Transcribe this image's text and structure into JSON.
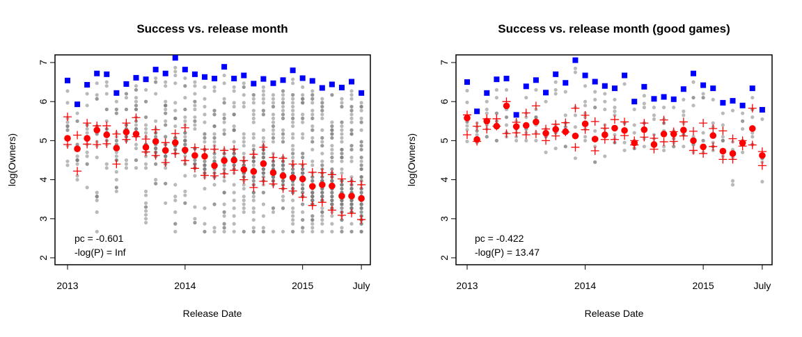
{
  "chart_data": [
    {
      "type": "scatter",
      "title": "Success vs. release month",
      "xlabel": "Release Date",
      "ylabel": "log(Owners)",
      "ylim": [
        2,
        7
      ],
      "yticks": [
        "2",
        "3",
        "4",
        "5",
        "6",
        "7"
      ],
      "xticks": [
        {
          "month_index": 0,
          "label": "2013"
        },
        {
          "month_index": 12,
          "label": "2014"
        },
        {
          "month_index": 24,
          "label": "2015"
        },
        {
          "month_index": 30,
          "label": "July"
        }
      ],
      "x_start": "2013-01",
      "annotation": [
        "pc = -0.601",
        "-log(P) = Inf"
      ],
      "max": [
        6.54,
        5.93,
        6.43,
        6.72,
        6.7,
        6.22,
        6.45,
        6.61,
        6.57,
        6.82,
        6.72,
        7.12,
        6.82,
        6.7,
        6.63,
        6.59,
        6.89,
        6.59,
        6.67,
        6.46,
        6.58,
        6.47,
        6.55,
        6.8,
        6.6,
        6.53,
        6.35,
        6.44,
        6.36,
        6.51,
        6.22
      ],
      "mean": [
        5.06,
        4.79,
        5.06,
        5.27,
        5.15,
        4.81,
        5.22,
        5.17,
        4.83,
        4.98,
        4.75,
        4.95,
        4.76,
        4.62,
        4.6,
        4.36,
        4.49,
        4.5,
        4.26,
        4.21,
        4.41,
        4.18,
        4.1,
        4.05,
        4.02,
        3.83,
        3.87,
        3.84,
        3.58,
        3.58,
        3.52
      ],
      "upper": [
        5.61,
        5.14,
        5.45,
        5.38,
        5.38,
        5.17,
        5.45,
        5.59,
        5.04,
        5.28,
        4.95,
        5.18,
        5.33,
        4.82,
        4.78,
        4.78,
        4.75,
        4.78,
        4.49,
        4.65,
        4.83,
        4.57,
        4.55,
        4.4,
        4.4,
        4.19,
        4.18,
        4.13,
        4.02,
        3.95,
        3.87
      ],
      "lower": [
        4.9,
        4.22,
        4.91,
        4.9,
        4.92,
        4.4,
        5.03,
        5.1,
        4.71,
        4.62,
        4.44,
        4.67,
        4.49,
        4.29,
        4.11,
        4.1,
        4.15,
        4.24,
        4.0,
        3.8,
        3.96,
        3.89,
        3.77,
        3.71,
        3.55,
        3.34,
        3.42,
        3.22,
        3.09,
        3.14,
        2.98
      ],
      "min": [
        4.37,
        4.0,
        3.8,
        2.67,
        4.3,
        3.7,
        4.3,
        4.3,
        2.9,
        3.9,
        3.4,
        2.67,
        3.4,
        2.9,
        2.67,
        2.67,
        2.67,
        2.67,
        2.67,
        2.67,
        2.67,
        2.67,
        2.67,
        2.67,
        2.67,
        2.67,
        2.67,
        2.67,
        2.67,
        2.67,
        2.67
      ],
      "colors": {
        "max": "#0000ff",
        "mean": "#ff0000",
        "quantile": "#ff0000",
        "points": "#808080"
      }
    },
    {
      "type": "scatter",
      "title": "Success vs. release month (good games)",
      "xlabel": "Release Date",
      "ylabel": "log(Owners)",
      "ylim": [
        2,
        7
      ],
      "yticks": [
        "2",
        "3",
        "4",
        "5",
        "6",
        "7"
      ],
      "xticks": [
        {
          "month_index": 0,
          "label": "2013"
        },
        {
          "month_index": 12,
          "label": "2014"
        },
        {
          "month_index": 24,
          "label": "2015"
        },
        {
          "month_index": 30,
          "label": "July"
        }
      ],
      "x_start": "2013-01",
      "annotation": [
        "pc = -0.422",
        "-log(P) = 13.47"
      ],
      "max": [
        6.5,
        5.75,
        6.22,
        6.57,
        6.59,
        5.66,
        6.39,
        6.55,
        6.23,
        6.7,
        6.48,
        7.06,
        6.67,
        6.51,
        6.4,
        6.34,
        6.67,
        6.0,
        6.38,
        6.07,
        6.12,
        6.06,
        6.32,
        6.72,
        6.42,
        6.34,
        5.97,
        6.02,
        5.9,
        6.34,
        5.79
      ],
      "mean": [
        5.58,
        5.03,
        5.5,
        5.37,
        5.89,
        5.36,
        5.39,
        5.48,
        5.19,
        5.29,
        5.23,
        5.12,
        5.43,
        5.04,
        5.15,
        5.32,
        5.26,
        4.94,
        5.28,
        4.9,
        5.17,
        5.17,
        5.27,
        5.0,
        4.84,
        5.13,
        4.73,
        4.67,
        4.94,
        5.31,
        4.62
      ],
      "upper": [
        5.66,
        5.37,
        5.56,
        5.56,
        6.0,
        5.47,
        5.71,
        5.89,
        5.3,
        5.42,
        5.46,
        5.83,
        5.65,
        5.49,
        5.32,
        5.54,
        5.48,
        5.0,
        5.45,
        5.06,
        5.53,
        5.23,
        5.48,
        5.24,
        5.45,
        5.31,
        5.25,
        5.05,
        5.0,
        5.83,
        4.72
      ],
      "lower": [
        5.15,
        4.98,
        5.29,
        5.37,
        5.18,
        5.2,
        5.15,
        5.17,
        5.0,
        5.12,
        5.22,
        4.83,
        5.28,
        4.74,
        5.03,
        5.03,
        5.13,
        4.89,
        5.09,
        4.78,
        4.97,
        4.98,
        5.12,
        4.75,
        4.67,
        4.85,
        4.52,
        4.52,
        4.86,
        4.89,
        4.36
      ],
      "min": [
        4.98,
        4.95,
        5.1,
        5.0,
        5.1,
        5.0,
        5.0,
        5.0,
        4.7,
        4.8,
        4.85,
        4.55,
        5.0,
        4.45,
        4.6,
        4.95,
        4.75,
        4.8,
        4.85,
        4.85,
        4.75,
        4.85,
        4.85,
        4.7,
        4.7,
        4.75,
        4.7,
        3.87,
        4.7,
        4.9,
        3.95
      ],
      "colors": {
        "max": "#0000ff",
        "mean": "#ff0000",
        "quantile": "#ff0000",
        "points": "#808080"
      }
    }
  ]
}
